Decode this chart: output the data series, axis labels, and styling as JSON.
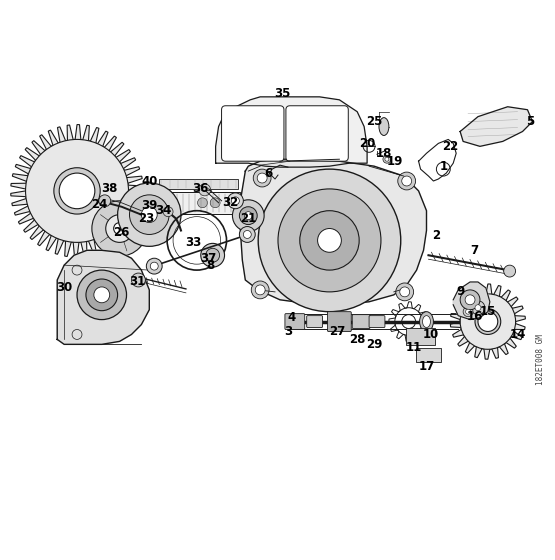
{
  "background_color": "#ffffff",
  "text_color": "#000000",
  "line_color": "#1a1a1a",
  "fig_width": 5.55,
  "fig_height": 5.6,
  "dpi": 100,
  "watermark": "182ET008 GM"
}
